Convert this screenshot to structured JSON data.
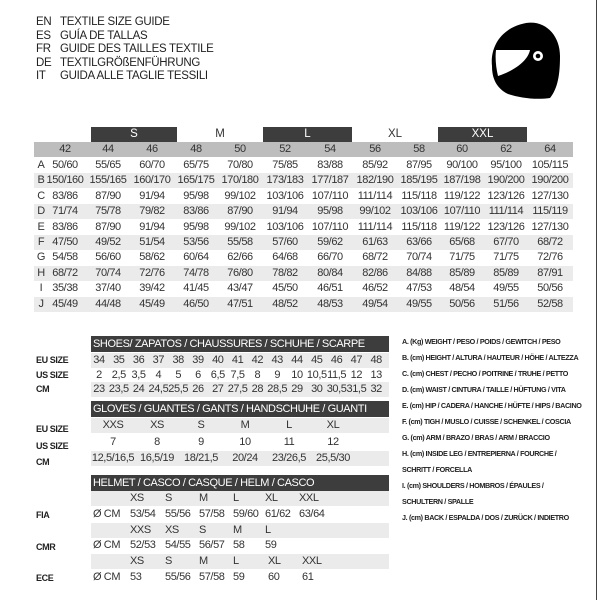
{
  "titles": [
    {
      "code": "EN",
      "text": "TEXTILE SIZE GUIDE"
    },
    {
      "code": "ES",
      "text": "GUÍA DE TALLAS"
    },
    {
      "code": "FR",
      "text": "GUIDE DES TAILLES TEXTILE"
    },
    {
      "code": "DE",
      "text": "TEXTILGRÖßENFÜHRUNG"
    },
    {
      "code": "IT",
      "text": "GUIDA ALLE TAGLIE TESSILI"
    }
  ],
  "icon": "helmet-icon",
  "textile": {
    "bands": [
      "S",
      "M",
      "L",
      "XL",
      "XXL"
    ],
    "sizes": [
      "42",
      "44",
      "46",
      "48",
      "50",
      "52",
      "54",
      "56",
      "58",
      "60",
      "62",
      "64"
    ],
    "rows": [
      {
        "label": "A",
        "values": [
          "50/60",
          "55/65",
          "60/70",
          "65/75",
          "70/80",
          "75/85",
          "83/88",
          "85/92",
          "87/95",
          "90/100",
          "95/100",
          "105/115"
        ]
      },
      {
        "label": "B",
        "values": [
          "150/160",
          "155/165",
          "160/170",
          "165/175",
          "170/180",
          "173/183",
          "177/187",
          "182/190",
          "185/195",
          "187/198",
          "190/200",
          "190/200"
        ]
      },
      {
        "label": "C",
        "values": [
          "83/86",
          "87/90",
          "91/94",
          "95/98",
          "99/102",
          "103/106",
          "107/110",
          "111/114",
          "115/118",
          "119/122",
          "123/126",
          "127/130"
        ]
      },
      {
        "label": "D",
        "values": [
          "71/74",
          "75/78",
          "79/82",
          "83/86",
          "87/90",
          "91/94",
          "95/98",
          "99/102",
          "103/106",
          "107/110",
          "111/114",
          "115/119"
        ]
      },
      {
        "label": "E",
        "values": [
          "83/86",
          "87/90",
          "91/94",
          "95/98",
          "99/102",
          "103/106",
          "107/110",
          "111/114",
          "115/118",
          "119/122",
          "123/126",
          "127/130"
        ]
      },
      {
        "label": "F",
        "values": [
          "47/50",
          "49/52",
          "51/54",
          "53/56",
          "55/58",
          "57/60",
          "59/62",
          "61/63",
          "63/66",
          "65/68",
          "67/70",
          "68/72"
        ]
      },
      {
        "label": "G",
        "values": [
          "54/58",
          "56/60",
          "58/62",
          "60/64",
          "62/66",
          "64/68",
          "66/70",
          "68/72",
          "70/74",
          "71/75",
          "71/75",
          "72/76"
        ]
      },
      {
        "label": "H",
        "values": [
          "68/72",
          "70/74",
          "72/76",
          "74/78",
          "76/80",
          "78/82",
          "80/84",
          "82/86",
          "84/88",
          "85/89",
          "85/89",
          "87/91"
        ]
      },
      {
        "label": "I",
        "values": [
          "35/38",
          "37/40",
          "39/42",
          "41/45",
          "43/47",
          "45/50",
          "46/51",
          "46/52",
          "47/53",
          "48/54",
          "49/55",
          "50/56"
        ]
      },
      {
        "label": "J",
        "values": [
          "45/49",
          "44/48",
          "45/49",
          "46/50",
          "47/51",
          "48/52",
          "48/53",
          "49/54",
          "49/55",
          "50/56",
          "51/56",
          "52/58"
        ]
      }
    ]
  },
  "shoes": {
    "title": "SHOES/ ZAPATOS / CHAUSSURES / SCHUHE / SCARPE",
    "rows": [
      {
        "label": "EU SIZE",
        "values": [
          "34",
          "35",
          "36",
          "37",
          "38",
          "39",
          "40",
          "41",
          "42",
          "43",
          "44",
          "45",
          "46",
          "47",
          "48"
        ]
      },
      {
        "label": "US SIZE",
        "values": [
          "2",
          "2,5",
          "3,5",
          "4",
          "5",
          "6",
          "6,5",
          "7,5",
          "8",
          "9",
          "10",
          "10,5",
          "11,5",
          "12",
          "13"
        ]
      },
      {
        "label": "CM",
        "values": [
          "23",
          "23,5",
          "24",
          "24,5",
          "25,5",
          "26",
          "27",
          "27,5",
          "28",
          "28,5",
          "29",
          "30",
          "30,5",
          "31,5",
          "32"
        ]
      }
    ]
  },
  "gloves": {
    "title": "GLOVES / GUANTES / GANTS / HANDSCHUHE / GUANTI",
    "rows": [
      {
        "label": "EU SIZE",
        "values": [
          "XXS",
          "XS",
          "S",
          "M",
          "L",
          "XL"
        ]
      },
      {
        "label": "US SIZE",
        "values": [
          "7",
          "8",
          "9",
          "10",
          "11",
          "12"
        ]
      },
      {
        "label": "CM",
        "values": [
          "12,5/16,5",
          "16,5/19",
          "18/21,5",
          "20/24",
          "23/26,5",
          "25,5/30"
        ]
      }
    ]
  },
  "helmet": {
    "title": "HELMET / CASCO / CASQUE / HELM / CASCO",
    "unit": "Ø CM",
    "groups": [
      {
        "label": "FIA",
        "sizes": [
          "XS",
          "S",
          "M",
          "L",
          "XL",
          "XXL"
        ],
        "values": [
          "53/54",
          "55/56",
          "57/58",
          "59/60",
          "61/62",
          "63/64"
        ]
      },
      {
        "label": "CMR",
        "sizes": [
          "XXS",
          "XS",
          "S",
          "M",
          "L"
        ],
        "values": [
          "52/53",
          "54/55",
          "56/57",
          "58",
          "59"
        ]
      },
      {
        "label": "ECE",
        "sizes": [
          "XS",
          "S",
          "M",
          "L",
          "XL",
          "XXL"
        ],
        "values": [
          "53",
          "55/56",
          "57/58",
          "59",
          "60",
          "61"
        ]
      }
    ]
  },
  "legend": [
    "A. (Kg) WEIGHT / PESO / POIDS / GEWITCH / PESO",
    "B. (cm) HEIGHT / ALTURA / HAUTEUR / HÖHE / ALTEZZA",
    "C. (cm) CHEST / PECHO / POITRINE / TRUHE / PETTO",
    "D. (cm) WAIST / CINTURA / TAILLE / HÜFTUNG / VITA",
    "E. (cm) HIP / CADERA / HANCHE / HÜFTE / HIPS /  BACINO",
    "F.  (cm) TIGH / MUSLO / CUISSE / SCHENKEL / COSCIA",
    "G. (cm) ARM  / BRAZO / BRAS / ARM / BRACCIO",
    "H. (cm) INSIDE LEG / ENTREPIERNA / FOURCHE /",
    "SCHRITT / FORCELLA",
    "I.  (cm) SHOULDERS / HOMBROS / ÉPAULES /",
    "SCHULTERN / SPALLE",
    "J. (cm) BACK / ESPALDA / DOS / ZURÜCK / INDIETRO"
  ]
}
